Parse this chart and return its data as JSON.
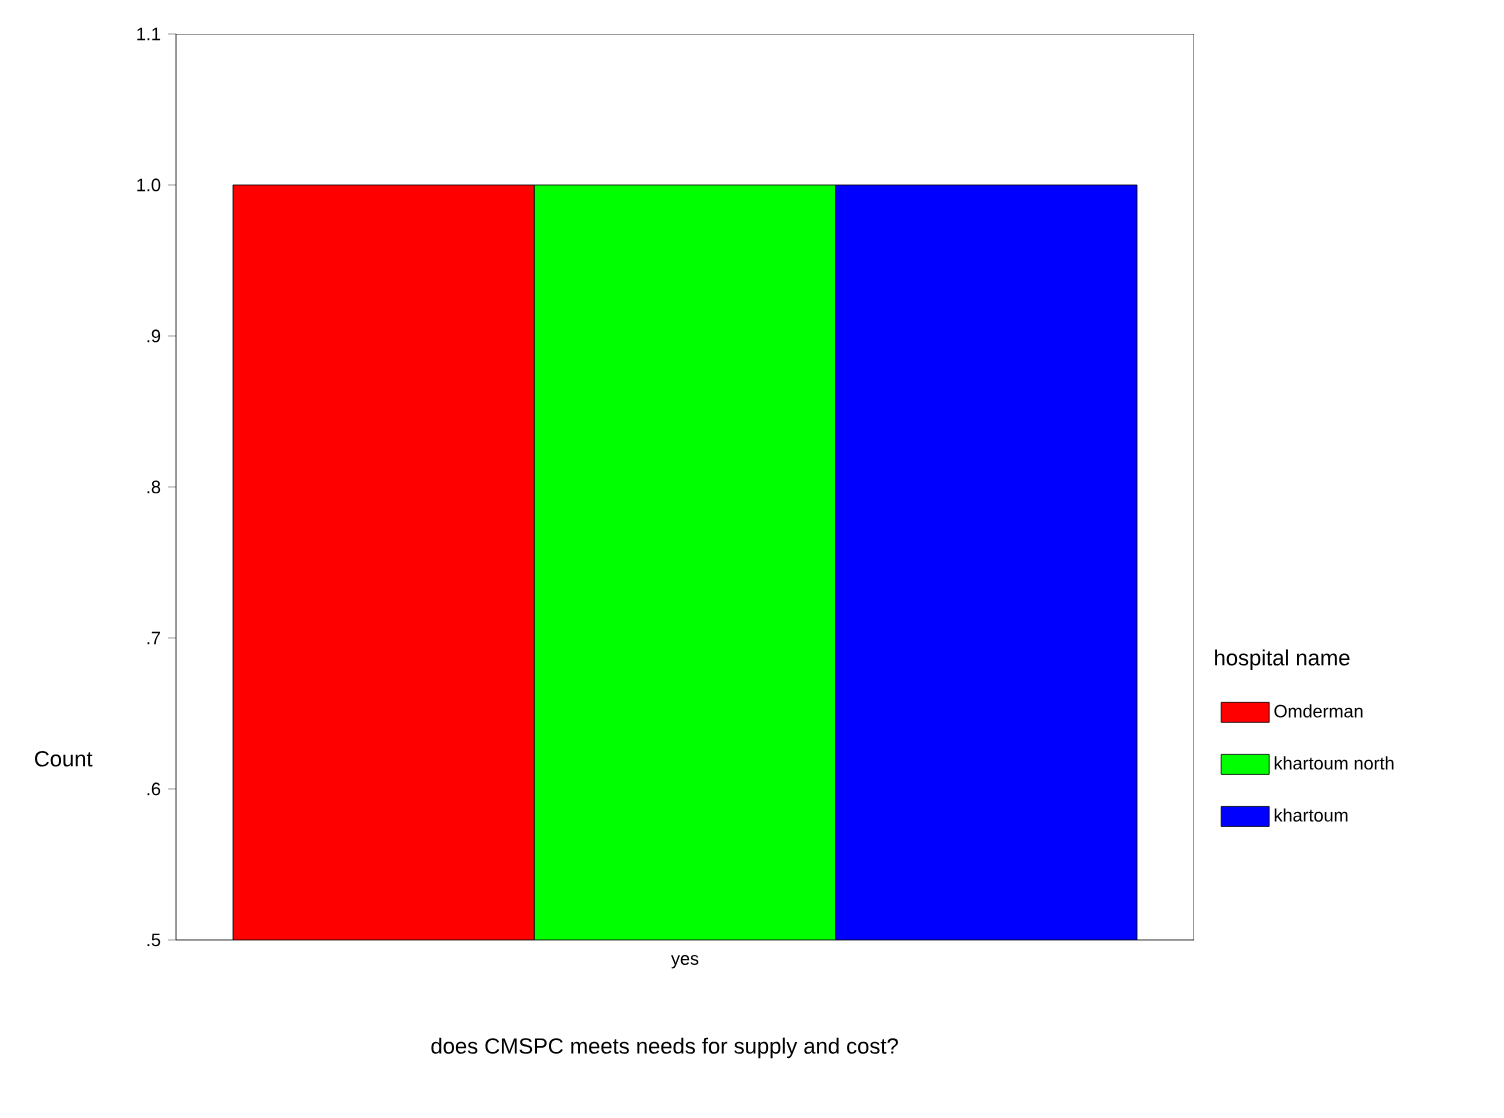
{
  "chart_data": {
    "type": "bar",
    "xlabel": "does CMSPC meets needs for supply and cost?",
    "ylabel": "Count",
    "legend_title": "hospital name",
    "legend": "right",
    "categories": [
      "yes"
    ],
    "series": [
      {
        "name": "Omderman",
        "color": "#ff0000",
        "values": [
          1.0
        ]
      },
      {
        "name": "khartoum north",
        "color": "#00ff00",
        "values": [
          1.0
        ]
      },
      {
        "name": "khartoum",
        "color": "#0000ff",
        "values": [
          1.0
        ]
      }
    ],
    "ylim": [
      0.5,
      1.1
    ],
    "yticks": [
      {
        "value": 0.5,
        "label": ".5"
      },
      {
        "value": 0.6,
        "label": ".6"
      },
      {
        "value": 0.7,
        "label": ".7"
      },
      {
        "value": 0.8,
        "label": ".8"
      },
      {
        "value": 0.9,
        "label": ".9"
      },
      {
        "value": 1.0,
        "label": "1.0"
      },
      {
        "value": 1.1,
        "label": "1.1"
      }
    ],
    "grid": false
  }
}
